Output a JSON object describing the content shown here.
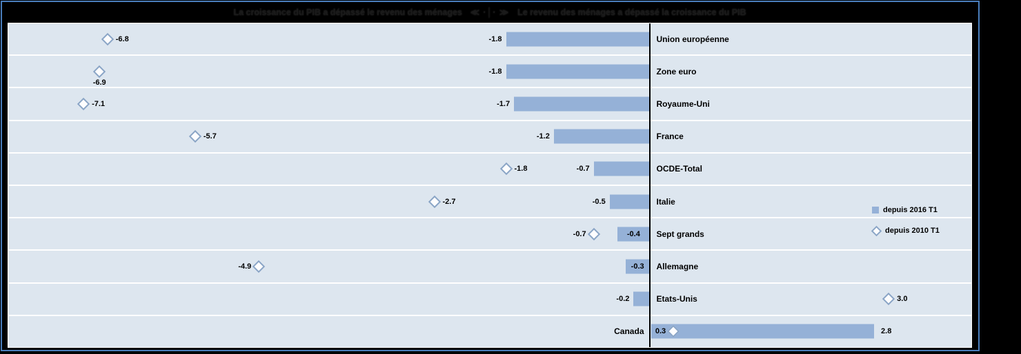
{
  "title": {
    "left": "La croissance du PIB a dépassé le revenu des ménages",
    "separator": "≪ ·│· ≫",
    "right": "Le revenu des ménages a dépassé la croissance du PIB"
  },
  "legend": {
    "items": [
      {
        "marker": "square-icon",
        "label": "depuis 2016 T1"
      },
      {
        "marker": "diamond-icon",
        "label": "depuis 2010 T1"
      }
    ]
  },
  "colors": {
    "background": "#000000",
    "frame_border": "#4a7ebc",
    "plot_background": "#dde6ef",
    "gridline": "#ffffff",
    "bar_fill": "#95b1d7",
    "diamond_outline": "#8aa5c6",
    "diamond_fill": "#fdfdfe",
    "axis_line": "#000000",
    "title_text": "#1a1a1a"
  },
  "chart_data": {
    "type": "bar",
    "orientation": "horizontal",
    "title": "La croissance du PIB a dépassé le revenu des ménages ≪ ·│· ≫ Le revenu des ménages a dépassé la croissance du PIB",
    "categories": [
      "Union européenne",
      "Zone euro",
      "Royaume-Uni",
      "France",
      "OCDE-Total",
      "Italie",
      "Sept grands",
      "Allemagne",
      "Etats-Unis",
      "Canada"
    ],
    "series": [
      {
        "name": "depuis 2016 T1",
        "style": "bar",
        "values": [
          -1.8,
          -1.8,
          -1.7,
          -1.2,
          -0.7,
          -0.5,
          -0.4,
          -0.3,
          -0.2,
          2.8
        ]
      },
      {
        "name": "depuis 2010 T1",
        "style": "diamond",
        "values": [
          -6.8,
          -6.9,
          -7.1,
          -5.7,
          -1.8,
          -2.7,
          -0.7,
          -4.9,
          3.0,
          0.3
        ]
      }
    ],
    "xlim": [
      -8.05,
      4.05
    ],
    "axis_at_zero": true,
    "gridlines": "horizontal-white",
    "legend_position": "center-right"
  },
  "rows": [
    {
      "country": "Union européenne",
      "side": "right",
      "bar": -1.8,
      "bar_label": "-1.8",
      "bar_label_pos": "outside",
      "diamond": -6.8,
      "diamond_label": "-6.8",
      "diamond_label_pos": "right"
    },
    {
      "country": "Zone euro",
      "side": "right",
      "bar": -1.8,
      "bar_label": "-1.8",
      "bar_label_pos": "outside",
      "diamond": -6.9,
      "diamond_label": "-6.9",
      "diamond_label_pos": "below"
    },
    {
      "country": "Royaume-Uni",
      "side": "right",
      "bar": -1.7,
      "bar_label": "-1.7",
      "bar_label_pos": "outside",
      "diamond": -7.1,
      "diamond_label": "-7.1",
      "diamond_label_pos": "right"
    },
    {
      "country": "France",
      "side": "right",
      "bar": -1.2,
      "bar_label": "-1.2",
      "bar_label_pos": "outside",
      "diamond": -5.7,
      "diamond_label": "-5.7",
      "diamond_label_pos": "right"
    },
    {
      "country": "OCDE-Total",
      "side": "right",
      "bar": -0.7,
      "bar_label": "-0.7",
      "bar_label_pos": "outside",
      "diamond": -1.8,
      "diamond_label": "-1.8",
      "diamond_label_pos": "right"
    },
    {
      "country": "Italie",
      "side": "right",
      "bar": -0.5,
      "bar_label": "-0.5",
      "bar_label_pos": "outside",
      "diamond": -2.7,
      "diamond_label": "-2.7",
      "diamond_label_pos": "right"
    },
    {
      "country": "Sept grands",
      "side": "right",
      "bar": -0.4,
      "bar_label": "-0.4",
      "bar_label_pos": "inside",
      "diamond": -0.7,
      "diamond_label": "-0.7",
      "diamond_label_pos": "left"
    },
    {
      "country": "Allemagne",
      "side": "right",
      "bar": -0.3,
      "bar_label": "-0.3",
      "bar_label_pos": "inside",
      "diamond": -4.9,
      "diamond_label": "-4.9",
      "diamond_label_pos": "left"
    },
    {
      "country": "Etats-Unis",
      "side": "right",
      "bar": -0.2,
      "bar_label": "-0.2",
      "bar_label_pos": "outside",
      "diamond": 3.0,
      "diamond_label": "3.0",
      "diamond_label_pos": "right"
    },
    {
      "country": "Canada",
      "side": "left",
      "bar": 2.8,
      "bar_label": "2.8",
      "bar_label_pos": "outside",
      "diamond": 0.3,
      "diamond_label": "0.3",
      "diamond_label_pos": "left"
    }
  ]
}
